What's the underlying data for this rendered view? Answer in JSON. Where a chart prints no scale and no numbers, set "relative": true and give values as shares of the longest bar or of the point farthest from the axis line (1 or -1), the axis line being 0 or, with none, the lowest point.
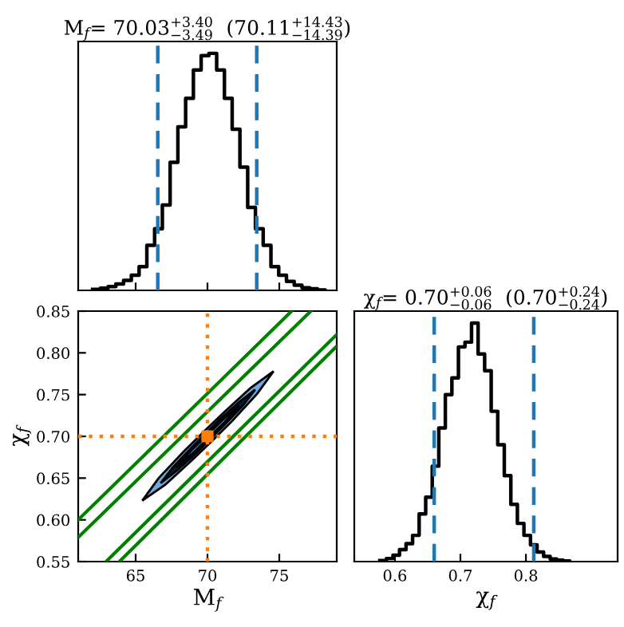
{
  "chart_data": [
    {
      "type": "step",
      "title": "M$_{f}$= 70.03$^{+3.40}$$_{−3.49}$  (70.11$^{+14.43}$$_{−14.39}$)",
      "relative": true,
      "color": "#000000",
      "x": [
        62.0,
        62.54,
        63.08,
        63.62,
        64.16,
        64.7,
        65.24,
        65.78,
        66.32,
        66.86,
        67.4,
        67.94,
        68.48,
        69.02,
        69.56,
        70.1,
        70.64,
        71.18,
        71.72,
        72.26,
        72.8,
        73.34,
        73.88,
        74.42,
        74.96,
        75.5,
        76.04,
        76.58,
        77.12,
        77.66,
        78.2
      ],
      "values": [
        0.004,
        0.009,
        0.016,
        0.027,
        0.042,
        0.064,
        0.1,
        0.19,
        0.26,
        0.36,
        0.54,
        0.69,
        0.81,
        0.93,
        0.99,
        1.0,
        0.93,
        0.81,
        0.68,
        0.52,
        0.35,
        0.26,
        0.19,
        0.1,
        0.064,
        0.038,
        0.022,
        0.011,
        0.007,
        0.002,
        0
      ],
      "xlim": [
        61,
        79
      ],
      "xticks": [
        65,
        70,
        75
      ],
      "tick_labels": false,
      "grid": false,
      "ref_lines": [
        {
          "axis": "x",
          "value": 66.54,
          "color": "#1f77b4",
          "line_style": "dashed"
        },
        {
          "axis": "x",
          "value": 73.43,
          "color": "#1f77b4",
          "line_style": "dashed"
        }
      ]
    },
    {
      "type": "line",
      "xlabel": "M$_{f}$",
      "ylabel": "χ$_{f}$",
      "xlim": [
        61,
        79
      ],
      "ylim": [
        0.55,
        0.85
      ],
      "xticks": [
        65,
        70,
        75
      ],
      "yticks": [
        {
          "value": 0.55,
          "label": "0.55"
        },
        {
          "value": 0.6,
          "label": "0.60"
        },
        {
          "value": 0.65,
          "label": "0.65"
        },
        {
          "value": 0.7,
          "label": "0.70"
        },
        {
          "value": 0.75,
          "label": "0.75"
        },
        {
          "value": 0.8,
          "label": "0.80"
        },
        {
          "value": 0.85,
          "label": "0.85"
        }
      ],
      "grid": false,
      "line_style": "solid",
      "series": [
        {
          "type": "area",
          "color": "#6fa8dc",
          "x": [
            65.46,
            66.6,
            68.36,
            69.71,
            71.1,
            73.0,
            74.6,
            73.46,
            71.7,
            70.35,
            68.96,
            67.06
          ],
          "values": [
            0.623,
            0.65,
            0.682,
            0.705,
            0.728,
            0.758,
            0.778,
            0.751,
            0.718,
            0.695,
            0.672,
            0.642
          ]
        },
        {
          "type": "area",
          "color": "#0d1b2a",
          "x": [
            66.74,
            67.6,
            68.86,
            69.84,
            70.84,
            72.2,
            73.32,
            72.47,
            71.2,
            70.22,
            69.22,
            67.87
          ],
          "values": [
            0.644,
            0.663,
            0.686,
            0.703,
            0.72,
            0.741,
            0.756,
            0.737,
            0.714,
            0.697,
            0.68,
            0.659
          ]
        },
        {
          "type": "area",
          "color": "#3b7dc4",
          "x": [
            67.83,
            68.86,
            69.95,
            71.06,
            72.23,
            71.2,
            70.11,
            69.0
          ],
          "values": [
            0.663,
            0.683,
            0.701,
            0.72,
            0.737,
            0.717,
            0.699,
            0.68
          ]
        },
        {
          "type": "line",
          "color": "#008000",
          "x": [
            61,
            75.86
          ],
          "values": [
            0.6,
            0.85
          ]
        },
        {
          "type": "line",
          "color": "#008000",
          "x": [
            61,
            77.2
          ],
          "values": [
            0.579,
            0.85
          ]
        },
        {
          "type": "line",
          "color": "#008000",
          "x": [
            62.94,
            79
          ],
          "values": [
            0.55,
            0.822
          ]
        },
        {
          "type": "line",
          "color": "#008000",
          "x": [
            63.87,
            79
          ],
          "values": [
            0.55,
            0.808
          ]
        },
        {
          "type": "scatter",
          "color": "#ff7f0e",
          "marker": "square",
          "x": [
            70
          ],
          "values": [
            0.7
          ]
        }
      ],
      "ref_lines": [
        {
          "axis": "x",
          "value": 70,
          "color": "#ff7f0e",
          "line_style": "dotted"
        },
        {
          "axis": "y",
          "value": 0.7,
          "color": "#ff7f0e",
          "line_style": "dotted"
        }
      ]
    },
    {
      "type": "step",
      "title": "χ$_{f}$= 0.70$^{+0.06}$$_{−0.06}$  (0.70$^{+0.24}$$_{−0.24}$)",
      "xlabel": "χ$_{f}$",
      "relative": true,
      "color": "#000000",
      "x": [
        0.577,
        0.587,
        0.597,
        0.607,
        0.617,
        0.627,
        0.637,
        0.647,
        0.657,
        0.667,
        0.677,
        0.687,
        0.697,
        0.707,
        0.717,
        0.727,
        0.737,
        0.747,
        0.757,
        0.767,
        0.777,
        0.787,
        0.797,
        0.807,
        0.817,
        0.827,
        0.837,
        0.847,
        0.857,
        0.867
      ],
      "values": [
        0.004,
        0.013,
        0.027,
        0.05,
        0.075,
        0.11,
        0.2,
        0.27,
        0.4,
        0.56,
        0.7,
        0.77,
        0.9,
        0.92,
        1.0,
        0.87,
        0.8,
        0.63,
        0.49,
        0.36,
        0.24,
        0.16,
        0.11,
        0.07,
        0.04,
        0.022,
        0.011,
        0.006,
        0.003,
        0
      ],
      "xlim": [
        0.538,
        0.94
      ],
      "xticks": [
        0.6,
        0.7,
        0.8
      ],
      "tick_labels": "x",
      "grid": false,
      "ref_lines": [
        {
          "axis": "x",
          "value": 0.66,
          "color": "#1f77b4",
          "line_style": "dashed"
        },
        {
          "axis": "x",
          "value": 0.812,
          "color": "#1f77b4",
          "line_style": "dashed"
        }
      ]
    }
  ]
}
